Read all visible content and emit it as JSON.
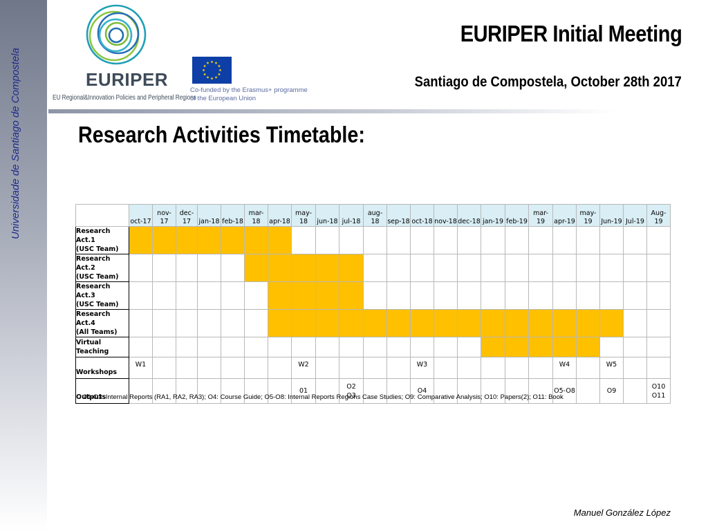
{
  "sidebar": {
    "text": "Universidade de Santiago de Compostela"
  },
  "logo": {
    "word": "EURIPER",
    "subtitle": "EU Regional&Innovation Policies and Peripheral Regions"
  },
  "eu": {
    "note_line1": "Co-funded by the Erasmus+ programme",
    "note_line2": "of the European Union"
  },
  "header": {
    "title": "EURIPER Initial Meeting",
    "subtitle": "Santiago de Compostela, October 28th 2017"
  },
  "page_title": "Research Activities Timetable:",
  "months": [
    {
      "top": "",
      "bottom": "oct-17"
    },
    {
      "top": "nov-",
      "bottom": "17"
    },
    {
      "top": "dec-",
      "bottom": "17"
    },
    {
      "top": "",
      "bottom": "jan-18"
    },
    {
      "top": "",
      "bottom": "feb-18"
    },
    {
      "top": "mar-",
      "bottom": "18"
    },
    {
      "top": "",
      "bottom": "apr-18"
    },
    {
      "top": "may-",
      "bottom": "18"
    },
    {
      "top": "",
      "bottom": "jun-18"
    },
    {
      "top": "",
      "bottom": "jul-18"
    },
    {
      "top": "",
      "bottom": "aug-18"
    },
    {
      "top": "",
      "bottom": "sep-18"
    },
    {
      "top": "",
      "bottom": "oct-18"
    },
    {
      "top": "",
      "bottom": "nov-18"
    },
    {
      "top": "",
      "bottom": "dec-18"
    },
    {
      "top": "",
      "bottom": "jan-19"
    },
    {
      "top": "",
      "bottom": "feb-19"
    },
    {
      "top": "mar-",
      "bottom": "19"
    },
    {
      "top": "",
      "bottom": "apr-19"
    },
    {
      "top": "may-",
      "bottom": "19"
    },
    {
      "top": "",
      "bottom": "Jun-19"
    },
    {
      "top": "",
      "bottom": "Jul-19"
    },
    {
      "top": "Aug-",
      "bottom": "19"
    }
  ],
  "activities": [
    {
      "line1": "Research Act.1",
      "line2": "(USC Team)",
      "start": 0,
      "end": 6
    },
    {
      "line1": "Research Act.2",
      "line2": "(USC Team)",
      "start": 5,
      "end": 9
    },
    {
      "line1": "Research Act.3",
      "line2": "(USC Team)",
      "start": 6,
      "end": 9
    },
    {
      "line1": "Research Act.4",
      "line2": "(All Teams)",
      "start": 6,
      "end": 20
    },
    {
      "line1": "Virtual",
      "line2": "Teaching",
      "start": 15,
      "end": 19
    }
  ],
  "workshops": {
    "label": "Workshops",
    "cells": [
      "W1",
      "",
      "",
      "",
      "",
      "",
      "",
      "W2",
      "",
      "",
      "",
      "",
      "W3",
      "",
      "",
      "",
      "",
      "",
      "W4",
      "",
      "W5",
      "",
      ""
    ]
  },
  "outputs": {
    "label": "Outputs",
    "cells": [
      {
        "a": "",
        "b": ""
      },
      {
        "a": "",
        "b": ""
      },
      {
        "a": "",
        "b": ""
      },
      {
        "a": "",
        "b": ""
      },
      {
        "a": "",
        "b": ""
      },
      {
        "a": "",
        "b": ""
      },
      {
        "a": "",
        "b": ""
      },
      {
        "a": "01",
        "b": ""
      },
      {
        "a": "",
        "b": ""
      },
      {
        "a": "O2",
        "b": "O3"
      },
      {
        "a": "",
        "b": ""
      },
      {
        "a": "",
        "b": ""
      },
      {
        "a": "O4",
        "b": ""
      },
      {
        "a": "",
        "b": ""
      },
      {
        "a": "",
        "b": ""
      },
      {
        "a": "",
        "b": ""
      },
      {
        "a": "",
        "b": ""
      },
      {
        "a": "",
        "b": ""
      },
      {
        "a": "O5-O8",
        "b": ""
      },
      {
        "a": "",
        "b": ""
      },
      {
        "a": "O9",
        "b": ""
      },
      {
        "a": "",
        "b": ""
      },
      {
        "a": "O10",
        "b": "O11"
      }
    ]
  },
  "footnote": "O1-O3: Internal Reports (RA1, RA2, RA3); O4: Course Guide; O5-O8: Internal Reports Regions Case Studies; O9: Comparative Analysis; O10: Papers(2); O11: Book",
  "author": "Manuel González López",
  "colors": {
    "bar": "#ffc000",
    "header_fill": "#d9eef5",
    "sidebar_text": "#1f2a8c"
  }
}
